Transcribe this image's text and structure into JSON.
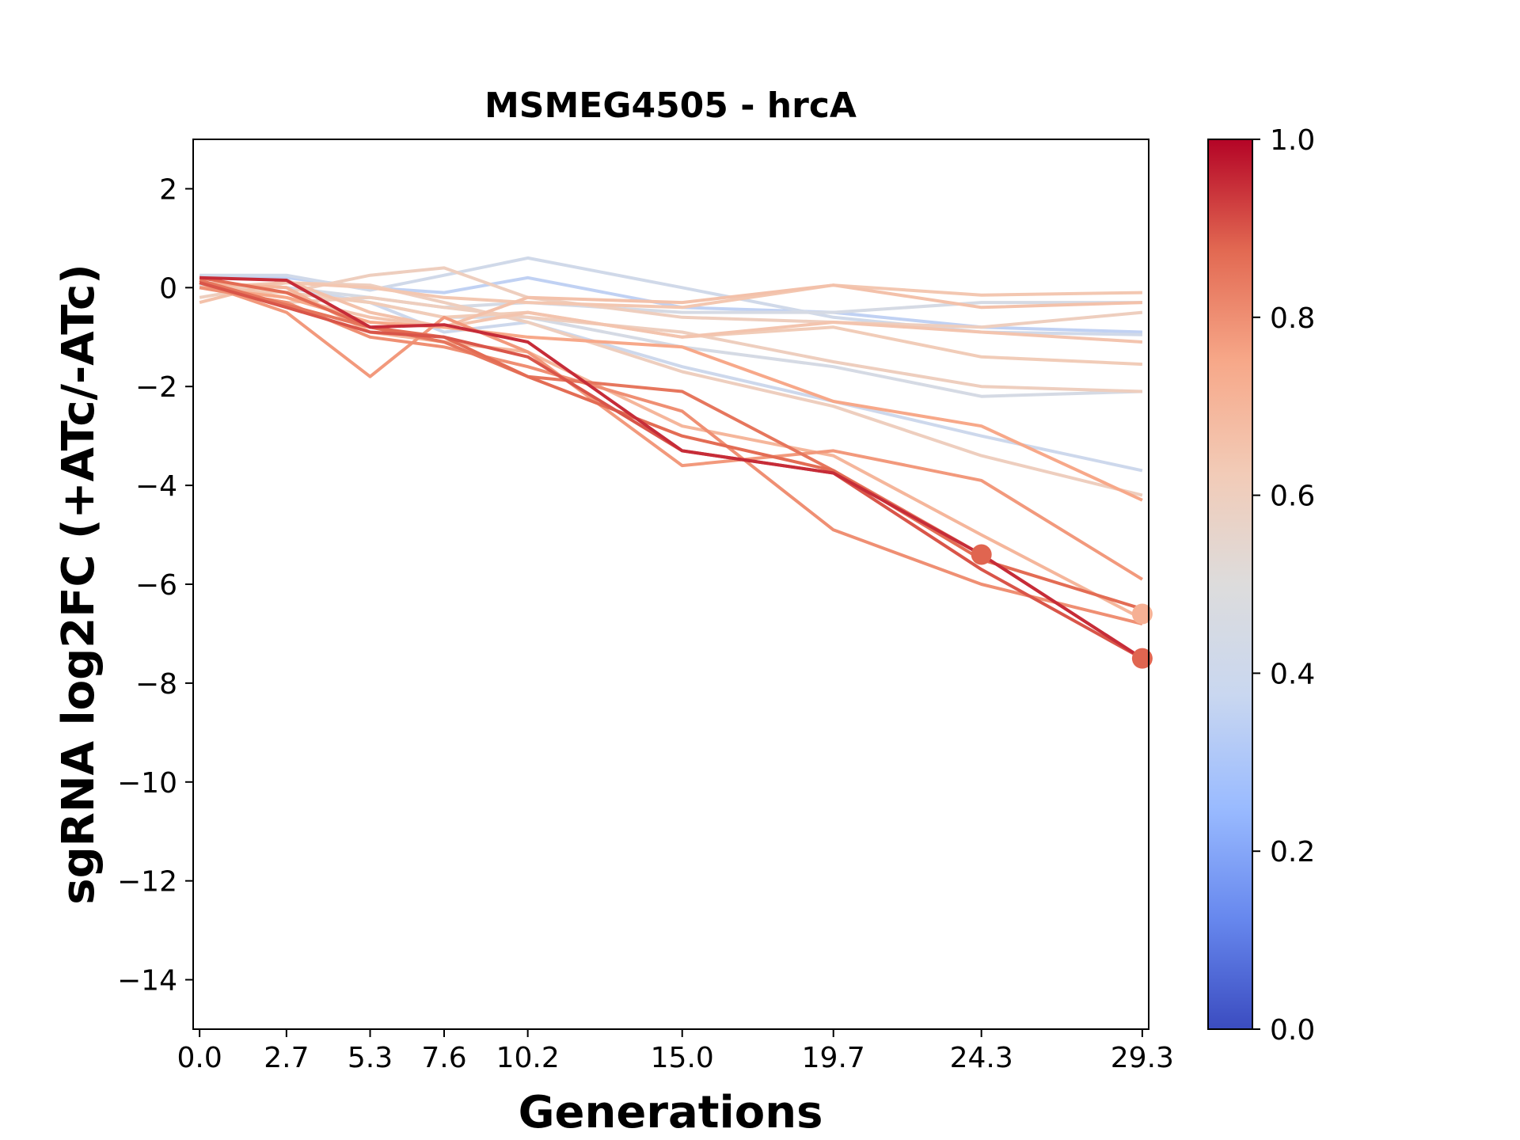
{
  "chart_data": {
    "type": "line",
    "title": "MSMEG4505 - hrcA",
    "xlabel": "Generations",
    "ylabel": "sgRNA log2FC (+ATc/-ATc)",
    "x": [
      0.0,
      2.7,
      5.3,
      7.6,
      10.2,
      15.0,
      19.7,
      24.3,
      29.3
    ],
    "x_tick_labels": [
      "0.0",
      "2.7",
      "5.3",
      "7.6",
      "10.2",
      "15.0",
      "19.7",
      "24.3",
      "29.3"
    ],
    "xlim": [
      -0.2,
      29.5
    ],
    "ylim": [
      -15,
      3
    ],
    "y_ticks": [
      2,
      0,
      -2,
      -4,
      -6,
      -8,
      -10,
      -12,
      -14
    ],
    "y_tick_labels": [
      "2",
      "−2",
      "−4",
      "−6",
      "−8",
      "−10",
      "−12",
      "−14"
    ],
    "y_tick_label_zero": "0",
    "grid": false,
    "colormap": "coolwarm",
    "colorbar": {
      "min": 0.0,
      "max": 1.0,
      "ticks": [
        0.0,
        0.2,
        0.4,
        0.6,
        0.8,
        1.0
      ],
      "tick_labels": [
        "0.0",
        "0.2",
        "0.4",
        "0.6",
        "0.8",
        "1.0"
      ],
      "stops": [
        "#3b4cc0",
        "#6788ee",
        "#9abbff",
        "#c9d7f0",
        "#dddcdc",
        "#f2cbb7",
        "#f7a889",
        "#e26952",
        "#b40426"
      ]
    },
    "series": [
      {
        "score": 0.35,
        "values": [
          0.2,
          0.2,
          0.0,
          -0.1,
          0.2,
          -0.4,
          -0.5,
          -0.8,
          -0.9
        ]
      },
      {
        "score": 0.42,
        "values": [
          0.25,
          0.25,
          -0.05,
          0.25,
          0.6,
          0.0,
          -0.6,
          -0.9,
          -0.95
        ]
      },
      {
        "score": 0.45,
        "values": [
          0.1,
          0.0,
          -0.2,
          -0.4,
          -0.3,
          -0.5,
          -0.5,
          -0.3,
          -0.3
        ]
      },
      {
        "score": 0.4,
        "values": [
          0.1,
          0.0,
          -0.3,
          -0.9,
          -0.7,
          -1.6,
          -2.3,
          -3.0,
          -3.7
        ]
      },
      {
        "score": 0.45,
        "values": [
          0.05,
          -0.1,
          -0.3,
          -0.6,
          -0.6,
          -1.2,
          -1.6,
          -2.2,
          -2.1
        ]
      },
      {
        "score": 0.6,
        "values": [
          0.1,
          -0.1,
          0.25,
          0.4,
          -0.2,
          -0.6,
          -0.7,
          -0.8,
          -0.5
        ]
      },
      {
        "score": 0.62,
        "values": [
          0.0,
          -0.1,
          -0.3,
          -0.6,
          -0.5,
          -1.0,
          -0.8,
          -1.4,
          -1.55
        ]
      },
      {
        "score": 0.6,
        "values": [
          -0.2,
          0.1,
          0.05,
          -0.3,
          -0.7,
          -1.7,
          -2.4,
          -3.4,
          -4.2
        ]
      },
      {
        "score": 0.6,
        "values": [
          0.0,
          -0.3,
          -0.2,
          -0.4,
          -0.6,
          -0.9,
          -1.5,
          -2.0,
          -2.1
        ]
      },
      {
        "score": 0.64,
        "values": [
          0.0,
          0.1,
          0.0,
          -0.2,
          -0.3,
          -0.4,
          0.05,
          -0.15,
          -0.1
        ]
      },
      {
        "score": 0.66,
        "values": [
          -0.3,
          0.15,
          -0.5,
          -0.8,
          -0.2,
          -0.3,
          0.05,
          -0.4,
          -0.3
        ]
      },
      {
        "score": 0.65,
        "values": [
          0.1,
          -0.2,
          -0.6,
          -0.8,
          -0.5,
          -1.0,
          -0.7,
          -0.9,
          -1.1
        ]
      },
      {
        "score": 0.7,
        "values": [
          0.1,
          0.0,
          -0.9,
          -1.1,
          -1.3,
          -2.8,
          -3.4,
          -5.0,
          -6.7
        ]
      },
      {
        "score": 0.75,
        "values": [
          0.0,
          -0.2,
          -0.7,
          -0.8,
          -1.0,
          -1.2,
          -2.3,
          -2.8,
          -4.3
        ]
      },
      {
        "score": 0.78,
        "values": [
          0.1,
          -0.5,
          -1.8,
          -0.6,
          -1.3,
          -3.6,
          -3.3,
          -3.9,
          -5.9
        ]
      },
      {
        "score": 0.8,
        "values": [
          0.0,
          -0.3,
          -1.0,
          -1.2,
          -1.6,
          -2.5,
          -4.9,
          -6.0,
          -6.8
        ]
      },
      {
        "score": 0.87,
        "values": [
          0.2,
          -0.1,
          -0.8,
          -1.0,
          -1.8,
          -3.0,
          -3.7,
          -5.5,
          -6.5
        ]
      },
      {
        "score": 0.9,
        "values": [
          0.1,
          -0.4,
          -0.9,
          -1.0,
          -1.4,
          -3.3,
          -3.75,
          -5.7,
          -7.5
        ]
      },
      {
        "score": 0.95,
        "values": [
          0.2,
          0.15,
          -0.8,
          -0.75,
          -1.1,
          -3.3,
          -3.75,
          -5.4,
          -7.5
        ]
      },
      {
        "score": 0.85,
        "values": [
          0.15,
          -0.35,
          -0.8,
          -1.1,
          -1.8,
          -2.1,
          -3.7,
          -5.4,
          -7.5
        ]
      }
    ],
    "markers": [
      {
        "x": 24.3,
        "y": -5.4,
        "score": 0.88
      },
      {
        "x": 29.3,
        "y": -6.6,
        "score": 0.72
      },
      {
        "x": 29.3,
        "y": -7.5,
        "score": 0.88
      }
    ]
  }
}
